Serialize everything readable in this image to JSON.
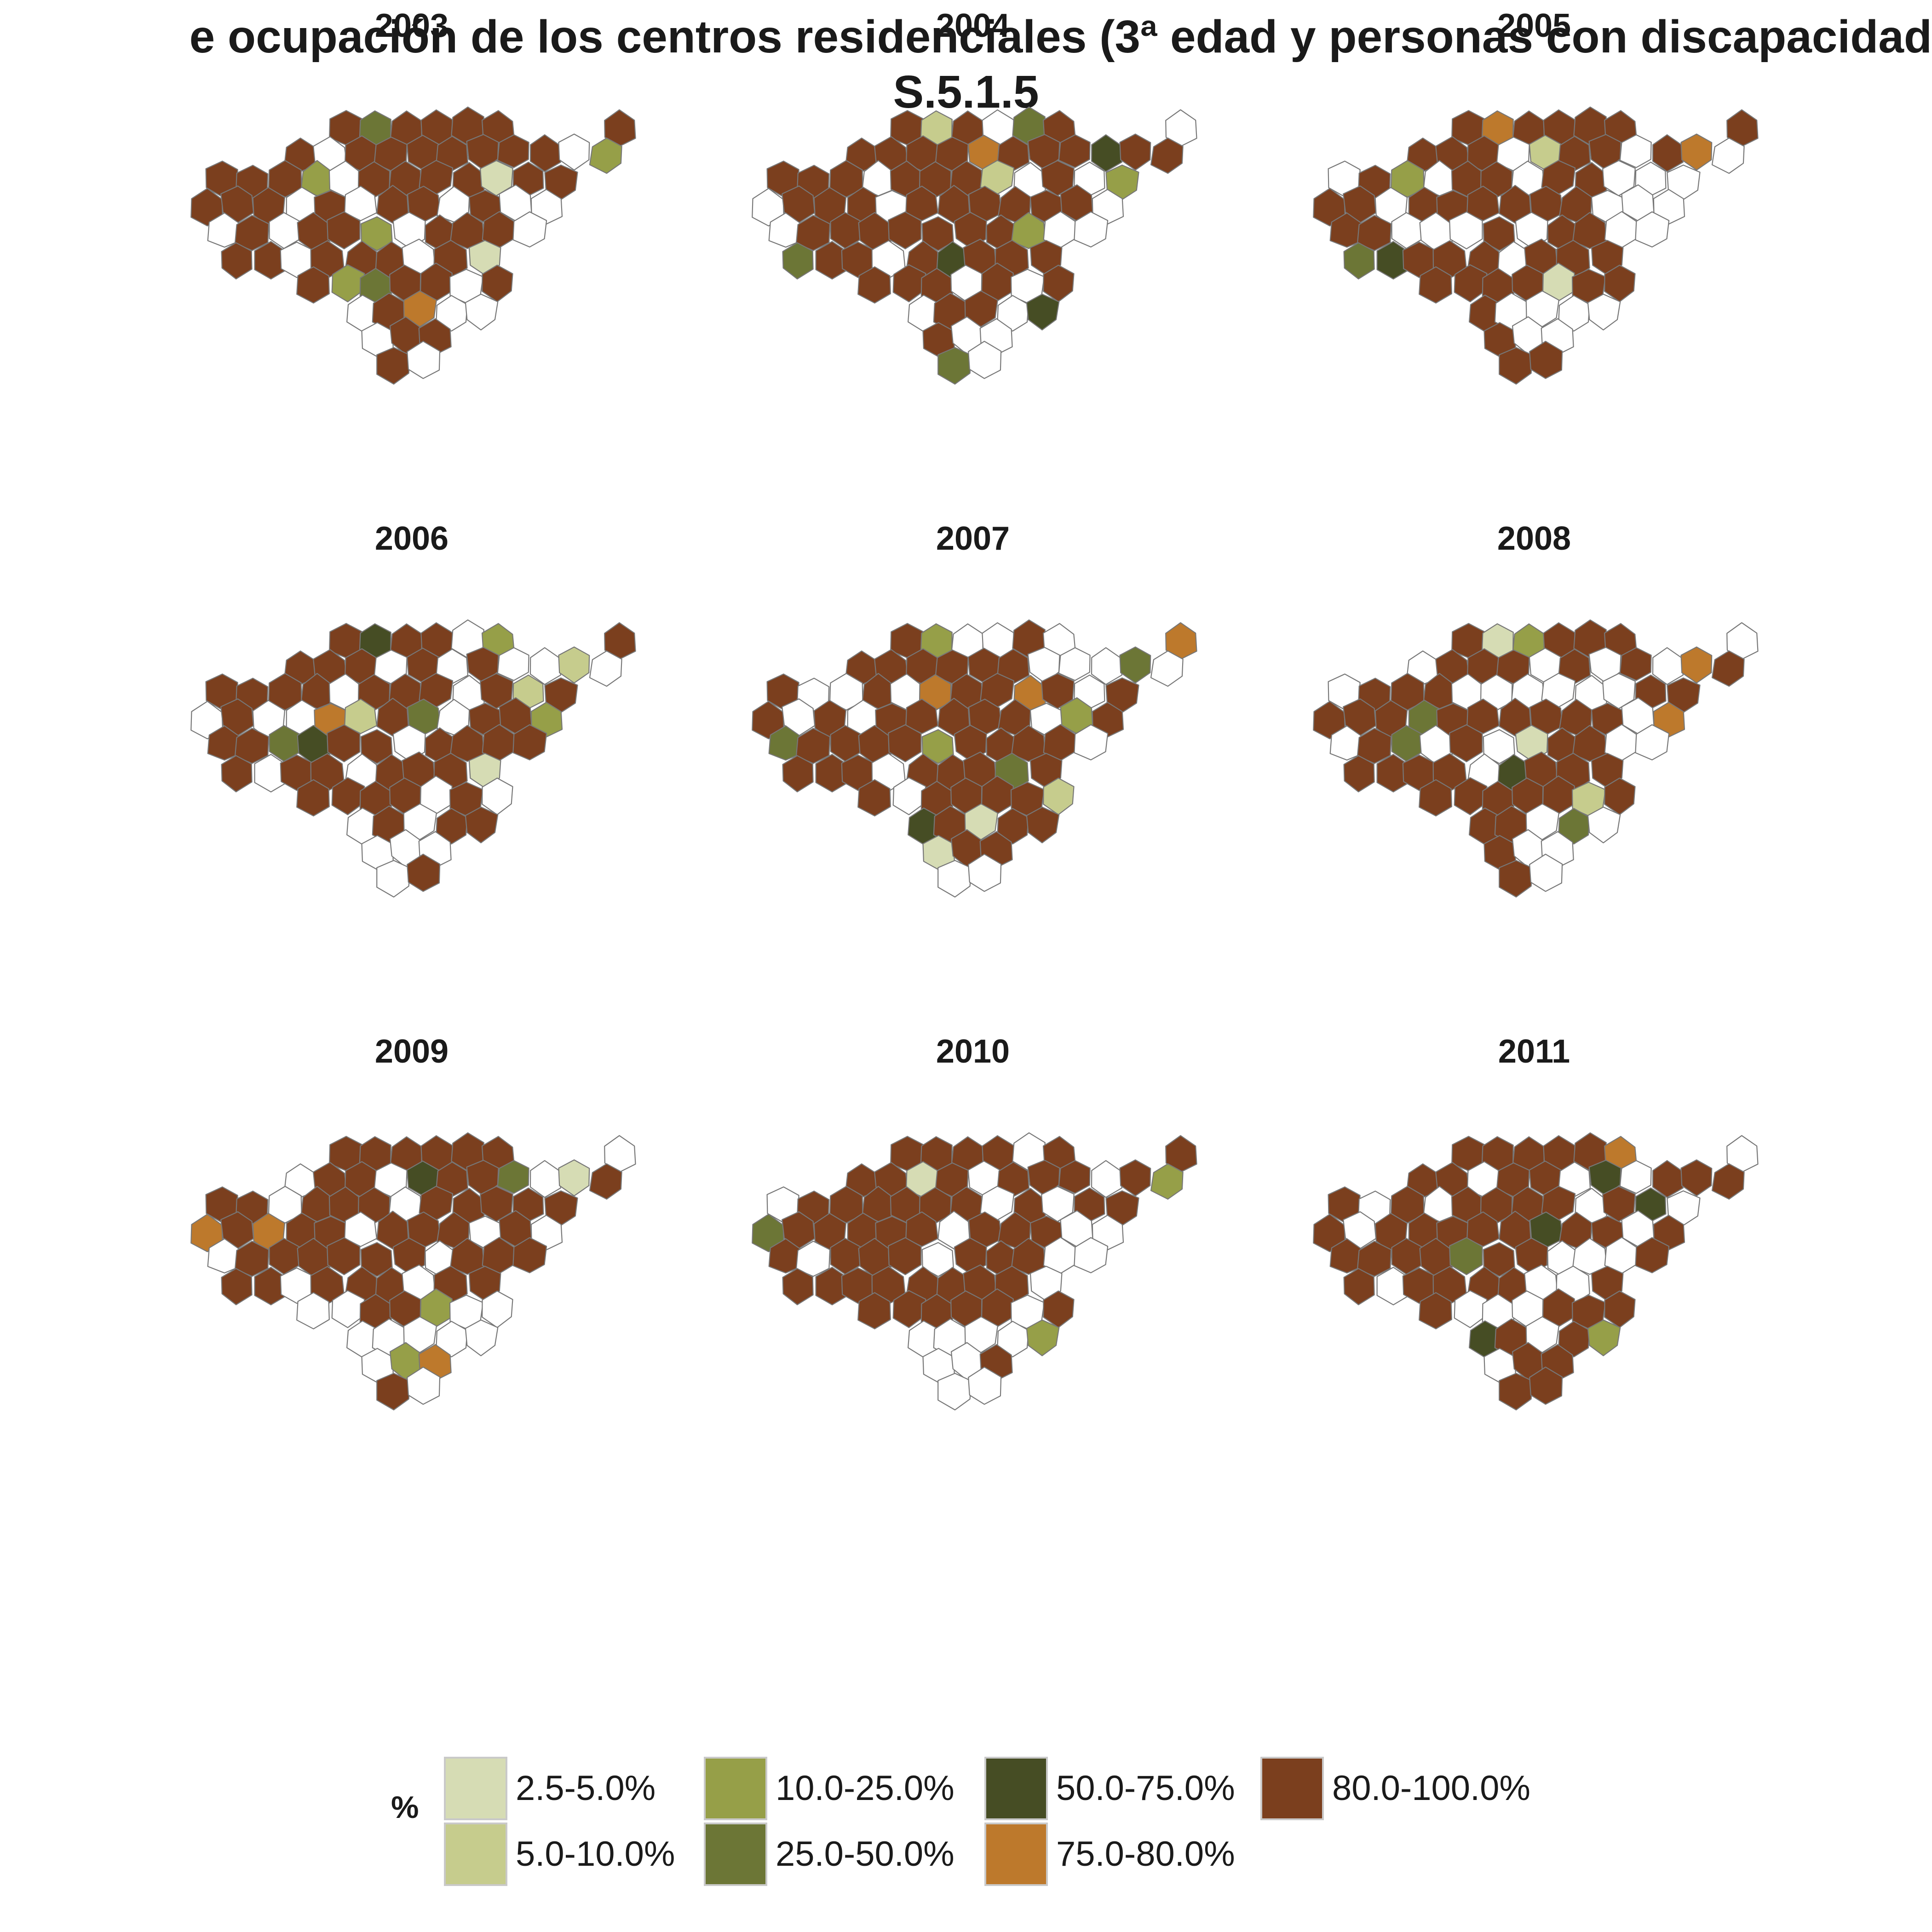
{
  "title": {
    "line1": "e ocupación de los centros residenciales (3ª edad y personas con discapacidad",
    "line2": "S.5.1.5"
  },
  "chart_data": {
    "type": "choropleth-map-small-multiples",
    "region": "Gipuzkoa municipalities",
    "panels": [
      {
        "label": "2003",
        "dominant_class": "80.0-100.0%"
      },
      {
        "label": "2004",
        "dominant_class": "80.0-100.0%"
      },
      {
        "label": "2005",
        "dominant_class": "80.0-100.0%"
      },
      {
        "label": "2006",
        "dominant_class": "80.0-100.0%"
      },
      {
        "label": "2007",
        "dominant_class": "80.0-100.0%"
      },
      {
        "label": "2008",
        "dominant_class": "80.0-100.0%"
      },
      {
        "label": "2009",
        "dominant_class": "80.0-100.0%"
      },
      {
        "label": "2010",
        "dominant_class": "80.0-100.0%"
      },
      {
        "label": "2011",
        "dominant_class": "80.0-100.0%"
      }
    ],
    "legend": {
      "title": "%",
      "placement": "bottom",
      "classes": [
        {
          "label": "2.5-5.0%",
          "color": "#d6dcb4"
        },
        {
          "label": "5.0-10.0%",
          "color": "#c6cc8d"
        },
        {
          "label": "10.0-25.0%",
          "color": "#969f48"
        },
        {
          "label": "25.0-50.0%",
          "color": "#6c7636"
        },
        {
          "label": "50.0-75.0%",
          "color": "#464d24"
        },
        {
          "label": "75.0-80.0%",
          "color": "#bd792c"
        },
        {
          "label": "80.0-100.0%",
          "color": "#7b3f1e"
        }
      ],
      "no_data_color": "#ffffff"
    }
  }
}
